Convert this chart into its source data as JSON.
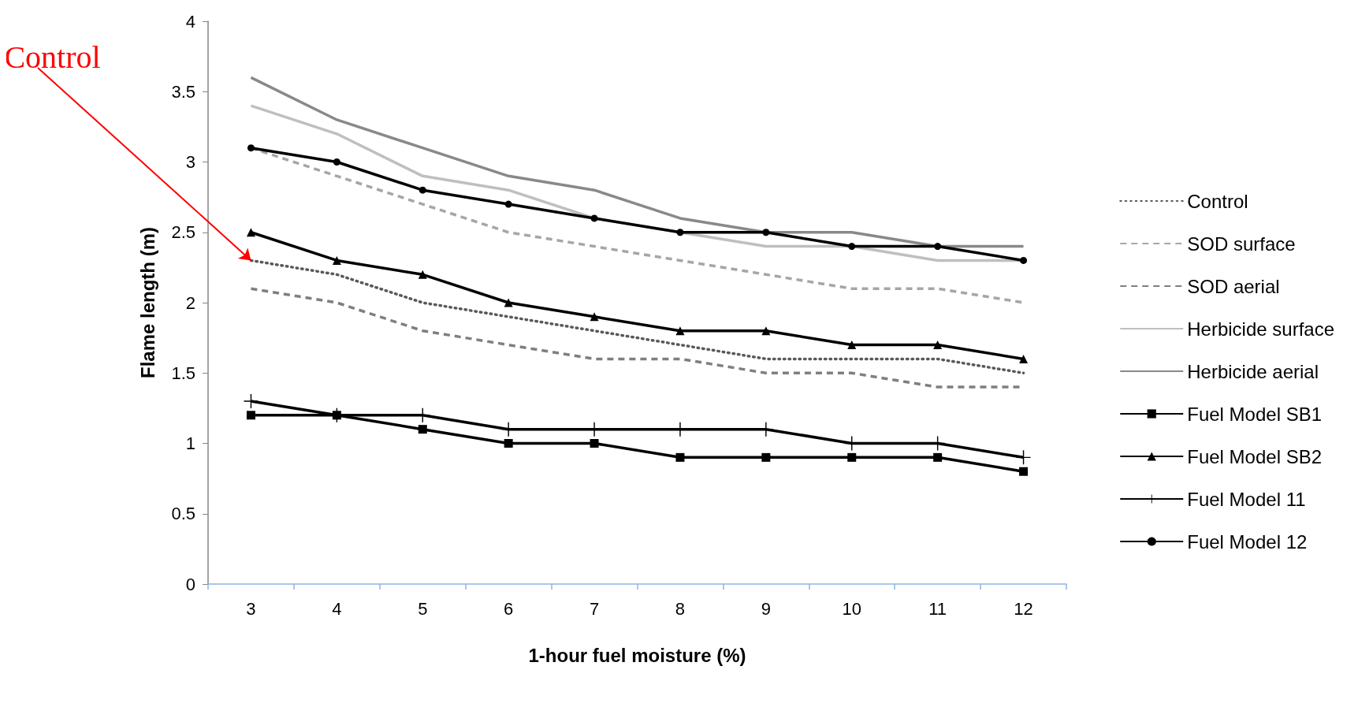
{
  "chart_data": {
    "type": "line",
    "xlabel": "1-hour fuel moisture (%)",
    "ylabel": "Flame length (m)",
    "categories": [
      "3",
      "4",
      "5",
      "6",
      "7",
      "8",
      "9",
      "10",
      "11",
      "12"
    ],
    "ylim": [
      0,
      4
    ],
    "yticks": [
      0,
      0.5,
      1,
      1.5,
      2,
      2.5,
      3,
      3.5,
      4
    ],
    "grid": false,
    "legend": "right",
    "annotations": [
      {
        "text": "Control",
        "x": "3",
        "y": 2.3
      }
    ],
    "series": [
      {
        "name": "Control",
        "color": "#595959",
        "line_style": "dotted",
        "marker": "none",
        "values": [
          2.3,
          2.2,
          2.0,
          1.9,
          1.8,
          1.7,
          1.6,
          1.6,
          1.6,
          1.5
        ]
      },
      {
        "name": "SOD surface",
        "color": "#a6a6a6",
        "line_style": "dashed",
        "marker": "none",
        "values": [
          3.1,
          2.9,
          2.7,
          2.5,
          2.4,
          2.3,
          2.2,
          2.1,
          2.1,
          2.0
        ]
      },
      {
        "name": "SOD aerial",
        "color": "#7f7f7f",
        "line_style": "dashed",
        "marker": "none",
        "values": [
          2.1,
          2.0,
          1.8,
          1.7,
          1.6,
          1.6,
          1.5,
          1.5,
          1.4,
          1.4
        ]
      },
      {
        "name": "Herbicide surface",
        "color": "#bfbfbf",
        "line_style": "solid",
        "marker": "none",
        "values": [
          3.4,
          3.2,
          2.9,
          2.8,
          2.6,
          2.5,
          2.4,
          2.4,
          2.3,
          2.3
        ]
      },
      {
        "name": "Herbicide aerial",
        "color": "#898989",
        "line_style": "solid",
        "marker": "none",
        "values": [
          3.6,
          3.3,
          3.1,
          2.9,
          2.8,
          2.6,
          2.5,
          2.5,
          2.4,
          2.4
        ]
      },
      {
        "name": "Fuel Model SB1",
        "color": "#000000",
        "line_style": "solid",
        "marker": "square",
        "values": [
          1.2,
          1.2,
          1.1,
          1.0,
          1.0,
          0.9,
          0.9,
          0.9,
          0.9,
          0.8
        ]
      },
      {
        "name": "Fuel Model SB2",
        "color": "#000000",
        "line_style": "solid",
        "marker": "triangle",
        "values": [
          2.5,
          2.3,
          2.2,
          2.0,
          1.9,
          1.8,
          1.8,
          1.7,
          1.7,
          1.6
        ]
      },
      {
        "name": "Fuel Model 11",
        "color": "#000000",
        "line_style": "solid",
        "marker": "cross",
        "values": [
          1.3,
          1.2,
          1.2,
          1.1,
          1.1,
          1.1,
          1.1,
          1.0,
          1.0,
          0.9
        ]
      },
      {
        "name": "Fuel Model 12",
        "color": "#000000",
        "line_style": "solid",
        "marker": "circle",
        "values": [
          3.1,
          3.0,
          2.8,
          2.7,
          2.6,
          2.5,
          2.5,
          2.4,
          2.4,
          2.3
        ]
      }
    ]
  }
}
